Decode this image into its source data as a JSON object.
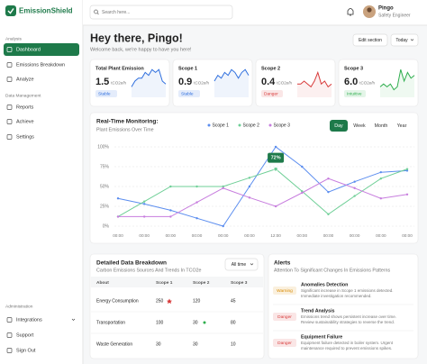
{
  "sidebar": {
    "brand": "EmissionShield",
    "active_item": 0,
    "sections": [
      {
        "label": "Analysis",
        "items": [
          "Dashboard",
          "Emissions Breakdown",
          "Analyze"
        ]
      },
      {
        "label": "Data Management",
        "items": [
          "Reports",
          "Achieve",
          "Settings"
        ]
      },
      {
        "label": "Administration",
        "items": [
          "Integrations",
          "Support",
          "Sign Out"
        ]
      }
    ]
  },
  "topbar": {
    "search_placeholder": "Search here...",
    "user_name": "Pingo",
    "user_role": "Safety Engineer"
  },
  "header": {
    "title": "Hey there, Pingo!",
    "subtitle": "Welcome back, we're happy to have you here!",
    "buttons": [
      "Edit section",
      "Today"
    ]
  },
  "cards": [
    {
      "title": "Total Plant Emission",
      "value": 1.5,
      "unit": "tCO2e/h",
      "status": "Stable",
      "color": "#2f6fde",
      "trend": [
        3,
        5,
        6,
        6,
        8,
        7,
        9,
        8,
        9,
        5,
        4
      ]
    },
    {
      "title": "Scope 1",
      "value": 0.9,
      "unit": "tCO2e/h",
      "status": "Stable",
      "color": "#2f6fde",
      "trend": [
        5,
        7,
        6,
        8,
        7,
        9,
        8,
        6,
        8,
        9,
        7
      ]
    },
    {
      "title": "Scope 2",
      "value": 0.4,
      "unit": "tCO2e/h",
      "status": "Danger",
      "color": "#d83b3b",
      "trend": [
        4,
        4,
        5,
        4,
        3,
        5,
        8,
        4,
        5,
        3,
        4
      ]
    },
    {
      "title": "Scope 3",
      "value": {
        "value": 6,
        "label": "6.0"
      },
      "unit": "tCO2e/h",
      "status": "Intuitive",
      "color": "#2fae4e",
      "trend": [
        3,
        4,
        3,
        4,
        2,
        3,
        9,
        5,
        8,
        6,
        7
      ]
    }
  ],
  "chart": {
    "type": "line",
    "title": "Real-Time Monitoring:",
    "subtitle": "Plant Emissions Over Time",
    "tabs": [
      "Day",
      "Week",
      "Month",
      "Year"
    ],
    "active_tab": 0,
    "categories": [
      "00:00",
      "00:00",
      "00:00",
      "00:00",
      "00:00",
      "00:00",
      "12:00",
      "00:00",
      "00:00",
      "00:00",
      "00:00",
      "00:00"
    ],
    "series": [
      {
        "name": "Scope 1",
        "color": "#5b8def",
        "values": [
          35,
          28,
          20,
          10,
          0,
          50,
          100,
          75,
          43,
          56,
          68,
          70
        ]
      },
      {
        "name": "Scope 2",
        "color": "#6fcf97",
        "values": [
          12,
          31,
          50,
          50,
          50,
          61,
          72,
          44,
          15,
          38,
          60,
          72
        ]
      },
      {
        "name": "Scope 3",
        "color": "#c77dde",
        "values": [
          12,
          12,
          12,
          30,
          48,
          36,
          25,
          42,
          60,
          48,
          35,
          40
        ]
      }
    ],
    "ylim": [
      0,
      100
    ],
    "yticks": [
      {
        "value": 0,
        "label": "0%"
      },
      {
        "value": 25,
        "label": "25%"
      },
      {
        "value": 50,
        "label": "50%"
      },
      {
        "value": 75,
        "label": "75%"
      },
      {
        "value": 100,
        "label": "100%"
      }
    ],
    "grid": true,
    "tooltip": {
      "value": 72,
      "label": "72%"
    }
  },
  "table": {
    "title": "Detailed Data Breakdown",
    "subtitle": "Carbon Emissions Sources And Trends In TCO2e",
    "filter": "All time",
    "columns": [
      "About",
      "Scope 1",
      "Scope 2",
      "Scope 3"
    ],
    "rows": [
      [
        "Energy Consumption",
        250,
        120,
        45
      ],
      [
        "Transportation",
        100,
        30,
        80
      ],
      [
        "Waste Generation",
        30,
        30,
        10
      ]
    ]
  },
  "alerts": {
    "title": "Alerts",
    "subtitle": "Attention To Significant Changes In Emissions Patterns",
    "items": [
      {
        "level": "Warning",
        "color": "#d98a00",
        "title": "Anomalies Detection",
        "lines": [
          "Significant increase in Scope 1 emissions detected.",
          "Immediate investigation recommended."
        ]
      },
      {
        "level": "Danger",
        "color": "#d83b3b",
        "title": "Trend Analysis",
        "lines": [
          "Emissions trend shows persistent increase over time.",
          "Review sustainability strategies to reverse the trend."
        ]
      },
      {
        "level": "Danger",
        "color": "#d83b3b",
        "title": "Equipment Failure",
        "lines": [
          "Equipment failure detected in boiler system. Urgent",
          "maintenance required to prevent emissions spikes."
        ]
      }
    ]
  }
}
